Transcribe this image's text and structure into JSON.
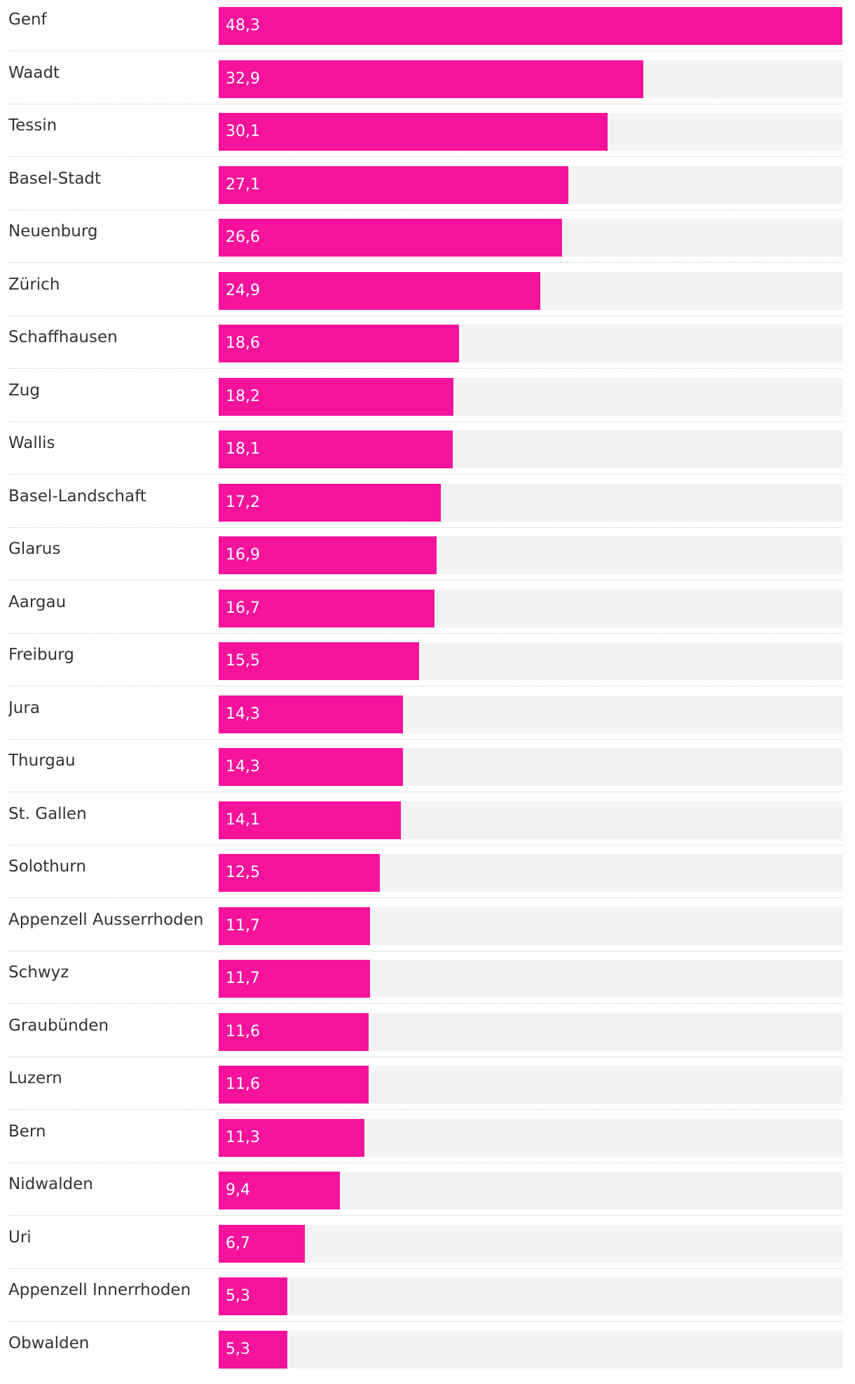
{
  "colors": {
    "bar": "#f5139b",
    "track": "#f3f3f3",
    "label": "#333333",
    "value": "#ffffff"
  },
  "chart_data": {
    "type": "bar",
    "orientation": "horizontal",
    "categories": [
      "Genf",
      "Waadt",
      "Tessin",
      "Basel-Stadt",
      "Neuenburg",
      "Zürich",
      "Schaffhausen",
      "Zug",
      "Wallis",
      "Basel-Landschaft",
      "Glarus",
      "Aargau",
      "Freiburg",
      "Jura",
      "Thurgau",
      "St. Gallen",
      "Solothurn",
      "Appenzell Ausserrhoden",
      "Schwyz",
      "Graubünden",
      "Luzern",
      "Bern",
      "Nidwalden",
      "Uri",
      "Appenzell Innerrhoden",
      "Obwalden"
    ],
    "values": [
      48.3,
      32.9,
      30.1,
      27.1,
      26.6,
      24.9,
      18.6,
      18.2,
      18.1,
      17.2,
      16.9,
      16.7,
      15.5,
      14.3,
      14.3,
      14.1,
      12.5,
      11.7,
      11.7,
      11.6,
      11.6,
      11.3,
      9.4,
      6.7,
      5.3,
      5.3
    ],
    "value_labels": [
      "48,3",
      "32,9",
      "30,1",
      "27,1",
      "26,6",
      "24,9",
      "18,6",
      "18,2",
      "18,1",
      "17,2",
      "16,9",
      "16,7",
      "15,5",
      "14,3",
      "14,3",
      "14,1",
      "12,5",
      "11,7",
      "11,7",
      "11,6",
      "11,6",
      "11,3",
      "9,4",
      "6,7",
      "5,3",
      "5,3"
    ],
    "xlim": [
      0,
      48.3
    ],
    "title": "",
    "xlabel": "",
    "ylabel": "",
    "grid": false,
    "legend": "none"
  }
}
